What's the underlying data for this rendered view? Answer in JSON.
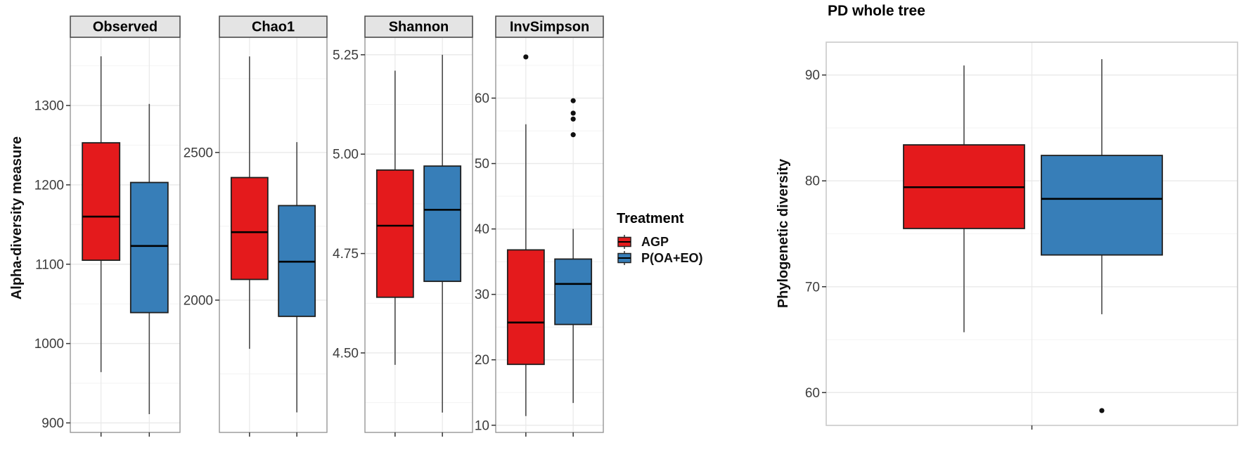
{
  "colors": {
    "agp": "#e41a1c",
    "poaeo": "#377eb8",
    "strip_bg": "#e4e4e4",
    "strip_border": "#454545",
    "panel_border_left": "#8f8f8f",
    "panel_border_right": "#c9c9c9",
    "grid_major": "#e9e9e9",
    "grid_minor": "#f4f4f4",
    "tick_text": "#3c3c3c",
    "axis_text": "#111111",
    "whisker": "#4a4a4a",
    "box_border": "#1f1f1f",
    "median": "#000000",
    "outlier": "#111111"
  },
  "legend": {
    "title": "Treatment",
    "entries": [
      {
        "label": "AGP",
        "color_key": "agp"
      },
      {
        "label": "P(OA+EO)",
        "color_key": "poaeo"
      }
    ]
  },
  "chart_data": [
    {
      "type": "boxplot",
      "title": "",
      "ylabel": "Alpha-diversity measure",
      "groups": [
        "AGP",
        "P(OA+EO)"
      ],
      "legend_position": "right",
      "grid": true,
      "facets": [
        {
          "label": "Observed",
          "ylim": [
            888,
            1386
          ],
          "yticks": [
            900,
            1000,
            1100,
            1200,
            1300
          ],
          "ytick_labels": [
            "900",
            "1000",
            "1100",
            "1200",
            "1300"
          ],
          "series": [
            {
              "name": "AGP",
              "whisker_low": 964,
              "q1": 1105,
              "median": 1160,
              "q3": 1253,
              "whisker_high": 1362,
              "outliers": []
            },
            {
              "name": "P(OA+EO)",
              "whisker_low": 911,
              "q1": 1039,
              "median": 1123,
              "q3": 1203,
              "whisker_high": 1302,
              "outliers": []
            }
          ]
        },
        {
          "label": "Chao1",
          "ylim": [
            1552,
            2890
          ],
          "yticks": [
            2000,
            2500
          ],
          "ytick_labels": [
            "2000",
            "2500"
          ],
          "series": [
            {
              "name": "AGP",
              "whisker_low": 1835,
              "q1": 2070,
              "median": 2230,
              "q3": 2415,
              "whisker_high": 2825,
              "outliers": []
            },
            {
              "name": "P(OA+EO)",
              "whisker_low": 1620,
              "q1": 1945,
              "median": 2130,
              "q3": 2320,
              "whisker_high": 2535,
              "outliers": []
            }
          ]
        },
        {
          "label": "Shannon",
          "ylim": [
            4.3,
            5.294
          ],
          "yticks": [
            4.5,
            4.75,
            5.0,
            5.25
          ],
          "ytick_labels": [
            "4.50",
            "4.75",
            "5.00",
            "5.25"
          ],
          "series": [
            {
              "name": "AGP",
              "whisker_low": 4.47,
              "q1": 4.64,
              "median": 4.82,
              "q3": 4.96,
              "whisker_high": 5.21,
              "outliers": []
            },
            {
              "name": "P(OA+EO)",
              "whisker_low": 4.35,
              "q1": 4.68,
              "median": 4.86,
              "q3": 4.97,
              "whisker_high": 5.25,
              "outliers": []
            }
          ]
        },
        {
          "label": "InvSimpson",
          "ylim": [
            8.9,
            69.3
          ],
          "yticks": [
            10,
            20,
            30,
            40,
            50,
            60
          ],
          "ytick_labels": [
            "10",
            "20",
            "30",
            "40",
            "50",
            "60"
          ],
          "series": [
            {
              "name": "AGP",
              "whisker_low": 11.4,
              "q1": 19.3,
              "median": 25.7,
              "q3": 36.8,
              "whisker_high": 56.0,
              "outliers": [
                66.3
              ]
            },
            {
              "name": "P(OA+EO)",
              "whisker_low": 13.4,
              "q1": 25.4,
              "median": 31.6,
              "q3": 35.4,
              "whisker_high": 40.0,
              "outliers": [
                59.6,
                57.7,
                56.8,
                54.4
              ]
            }
          ]
        }
      ]
    },
    {
      "type": "boxplot",
      "title": "PD whole tree",
      "ylabel": "Phylogenetic diversity",
      "groups": [
        "AGP",
        "P(OA+EO)"
      ],
      "grid": true,
      "ylim": [
        56.9,
        93.1
      ],
      "yticks": [
        60,
        70,
        80,
        90
      ],
      "ytick_labels": [
        "60",
        "70",
        "80",
        "90"
      ],
      "series": [
        {
          "name": "AGP",
          "whisker_low": 65.7,
          "q1": 75.5,
          "median": 79.4,
          "q3": 83.4,
          "whisker_high": 90.9,
          "outliers": []
        },
        {
          "name": "P(OA+EO)",
          "whisker_low": 67.4,
          "q1": 73.0,
          "median": 78.3,
          "q3": 82.4,
          "whisker_high": 91.5,
          "outliers": [
            58.3
          ]
        }
      ]
    }
  ]
}
